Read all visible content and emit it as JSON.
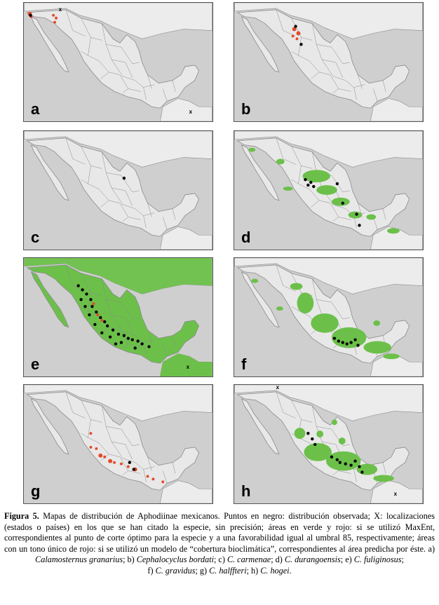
{
  "panels": [
    {
      "label": "a"
    },
    {
      "label": "b"
    },
    {
      "label": "c"
    },
    {
      "label": "d"
    },
    {
      "label": "e"
    },
    {
      "label": "f"
    },
    {
      "label": "g"
    },
    {
      "label": "h"
    }
  ],
  "markers": {
    "x": "x"
  },
  "colors": {
    "background": "#cfcfcf",
    "land": "#e8e8e8",
    "borders": "#8a8a8a",
    "predicted_green": "#6cc04a",
    "predicted_red": "#e34a2a",
    "observed_black": "#000000"
  },
  "caption": {
    "figure_label": "Figura 5.",
    "p1": " Mapas de distribución de Aphodiinae mexicanos. Puntos en negro: distribución observada; X: localizaciones (estados o países) en los que se han citado la especie, sin precisión; áreas en verde y rojo: si se utilizó MaxEnt, correspondientes al punto de corte óptimo para la especie y a una favorabilidad igual al umbral 85, respectivamente; áreas con un tono único de rojo: si se utilizó un modelo de “cobertura bioclimática”, correspondientes al área predicha por éste. a) ",
    "sp_a": "Calamosternus granarius",
    "s1": "; b) ",
    "sp_b": "Cephalocyclus bordati",
    "s2": "; c) ",
    "sp_c": "C. carmenae",
    "s3": "; d) ",
    "sp_d": "C. durangoensis",
    "s4": "; e) ",
    "sp_e": "C. fuliginosus",
    "s5": ";",
    "s6": "f) ",
    "sp_f": "C. gravidus",
    "s7": "; g) ",
    "sp_g": "C. halffteri",
    "s8": "; h) ",
    "sp_h": "C. hogei",
    "s9": "."
  }
}
